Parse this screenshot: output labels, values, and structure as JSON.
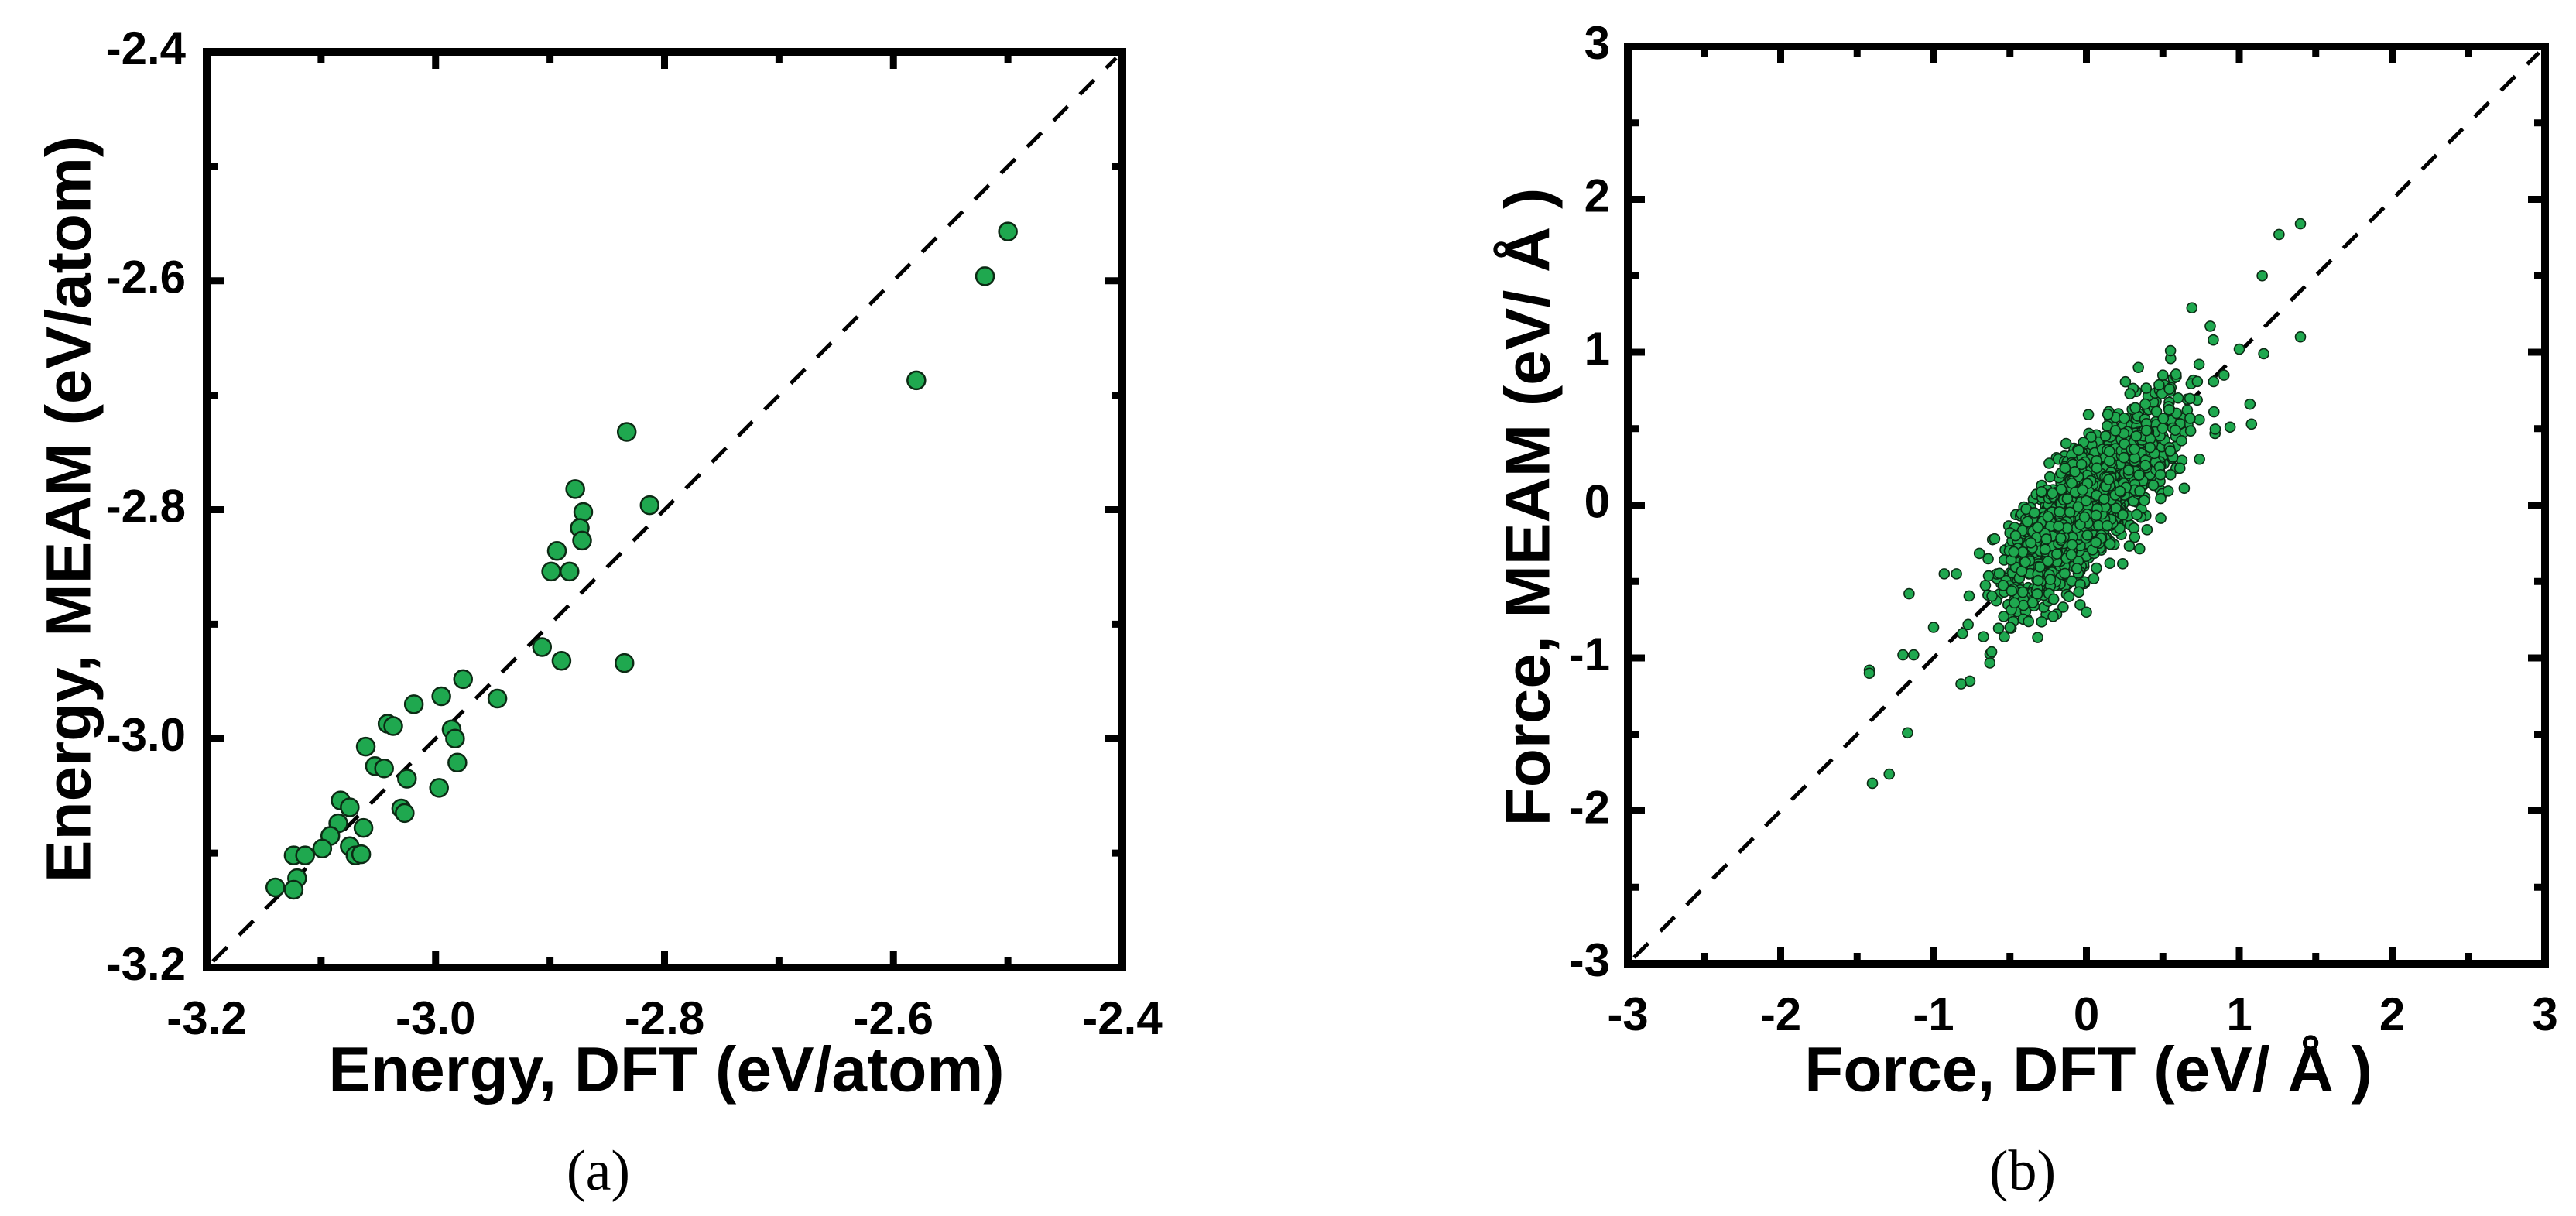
{
  "chart_data": [
    {
      "id": "a",
      "type": "scatter",
      "caption": "(a)",
      "xlabel": "Energy, DFT (eV/atom)",
      "ylabel": "Energy, MEAM (eV/atom)",
      "xlim": [
        -3.2,
        -2.4
      ],
      "ylim": [
        -3.2,
        -2.4
      ],
      "xticks": [
        -3.2,
        -3.0,
        -2.8,
        -2.6,
        -2.4
      ],
      "xtick_labels": [
        "-3.2",
        "-3.0",
        "-2.8",
        "-2.6",
        "-2.4"
      ],
      "yticks": [
        -3.2,
        -3.0,
        -2.8,
        -2.6,
        -2.4
      ],
      "ytick_labels": [
        "-3.2",
        "-3.0",
        "-2.8",
        "-2.6",
        "-2.4"
      ],
      "minor_step": 0.1,
      "grid": false,
      "reference_line": "y = x (dashed)",
      "marker_color": "#1fa84f",
      "points": [
        [
          -2.5,
          -2.557
        ],
        [
          -2.52,
          -2.596
        ],
        [
          -2.58,
          -2.687
        ],
        [
          -2.833,
          -2.732
        ],
        [
          -2.878,
          -2.782
        ],
        [
          -2.871,
          -2.802
        ],
        [
          -2.874,
          -2.816
        ],
        [
          -2.872,
          -2.827
        ],
        [
          -2.813,
          -2.796
        ],
        [
          -2.894,
          -2.836
        ],
        [
          -2.899,
          -2.854
        ],
        [
          -2.883,
          -2.854
        ],
        [
          -2.907,
          -2.92
        ],
        [
          -2.89,
          -2.932
        ],
        [
          -2.835,
          -2.934
        ],
        [
          -2.976,
          -2.948
        ],
        [
          -2.946,
          -2.965
        ],
        [
          -2.995,
          -2.963
        ],
        [
          -3.019,
          -2.97
        ],
        [
          -3.042,
          -2.987
        ],
        [
          -3.037,
          -2.989
        ],
        [
          -2.986,
          -2.992
        ],
        [
          -2.983,
          -3.0
        ],
        [
          -2.981,
          -3.021
        ],
        [
          -3.061,
          -3.007
        ],
        [
          -3.053,
          -3.024
        ],
        [
          -3.045,
          -3.026
        ],
        [
          -3.025,
          -3.035
        ],
        [
          -2.997,
          -3.043
        ],
        [
          -3.03,
          -3.061
        ],
        [
          -3.027,
          -3.065
        ],
        [
          -3.083,
          -3.054
        ],
        [
          -3.075,
          -3.06
        ],
        [
          -3.063,
          -3.078
        ],
        [
          -3.085,
          -3.074
        ],
        [
          -3.092,
          -3.085
        ],
        [
          -3.099,
          -3.096
        ],
        [
          -3.075,
          -3.094
        ],
        [
          -3.07,
          -3.102
        ],
        [
          -3.065,
          -3.101
        ],
        [
          -3.124,
          -3.102
        ],
        [
          -3.114,
          -3.102
        ],
        [
          -3.121,
          -3.122
        ],
        [
          -3.14,
          -3.13
        ],
        [
          -3.124,
          -3.132
        ]
      ]
    },
    {
      "id": "b",
      "type": "scatter",
      "caption": "(b)",
      "xlabel": "Force, DFT (eV/ Å )",
      "ylabel": "Force, MEAM (eV/ Å )",
      "xlim": [
        -3,
        3
      ],
      "ylim": [
        -3,
        3
      ],
      "xticks": [
        -3,
        -2,
        -1,
        0,
        1,
        2,
        3
      ],
      "xtick_labels": [
        "-3",
        "-2",
        "-1",
        "0",
        "1",
        "2",
        "3"
      ],
      "yticks": [
        -3,
        -2,
        -1,
        0,
        1,
        2,
        3
      ],
      "ytick_labels": [
        "-3",
        "-2",
        "-1",
        "0",
        "1",
        "2",
        "3"
      ],
      "minor_step": 0.5,
      "grid": false,
      "reference_line": "y = x (dashed)",
      "marker_color": "#1fa84f",
      "points": [
        [
          1.4,
          1.84
        ],
        [
          1.26,
          1.77
        ],
        [
          1.15,
          1.5
        ],
        [
          0.69,
          1.29
        ],
        [
          0.81,
          1.17
        ],
        [
          1.4,
          1.1
        ],
        [
          0.83,
          1.08
        ],
        [
          1.16,
          0.99
        ],
        [
          1.07,
          0.66
        ],
        [
          1.08,
          0.53
        ],
        [
          0.94,
          0.51
        ],
        [
          0.74,
          0.3
        ],
        [
          0.64,
          0.11
        ],
        [
          -1.42,
          -1.08
        ],
        [
          -1.42,
          -1.1
        ],
        [
          -0.82,
          -1.17
        ],
        [
          -1.17,
          -1.49
        ],
        [
          -1.29,
          -1.76
        ],
        [
          -1.4,
          -1.82
        ],
        [
          -1.16,
          -0.58
        ],
        [
          -1.13,
          -0.98
        ],
        [
          -0.93,
          -0.45
        ],
        [
          -0.62,
          -0.96
        ],
        [
          0.0,
          -0.7
        ],
        [
          0.55,
          1.01
        ],
        [
          0.34,
          0.9
        ],
        [
          1.0,
          1.02
        ],
        [
          0.9,
          0.85
        ],
        [
          -1.0,
          -0.8
        ],
        [
          -0.85,
          -0.45
        ],
        [
          -1.2,
          -0.98
        ],
        [
          0.5,
          0.85
        ],
        [
          -0.5,
          -0.8
        ],
        [
          0.6,
          0.7
        ]
      ],
      "bulk_cloud": {
        "count": 1800,
        "x_mean": 0.0,
        "x_sd": 0.27,
        "slope": 0.9,
        "residual_sd": 0.19,
        "seed": 7
      }
    }
  ]
}
